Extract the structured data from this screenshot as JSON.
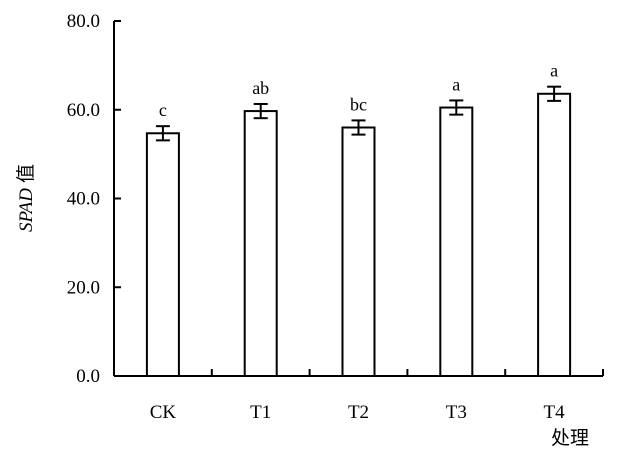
{
  "chart_data": {
    "type": "bar",
    "title": "",
    "xlabel": "处理",
    "ylabel_italic": "SPAD",
    "ylabel_rest": "值",
    "ylim": [
      0,
      80
    ],
    "yticks": [
      "0.0",
      "20.0",
      "40.0",
      "60.0",
      "80.0"
    ],
    "ytick_values": [
      0,
      20,
      40,
      60,
      80
    ],
    "categories": [
      "CK",
      "T1",
      "T2",
      "T3",
      "T4"
    ],
    "values": [
      54.7,
      59.7,
      56.0,
      60.5,
      63.6
    ],
    "errors": [
      1.6,
      1.6,
      1.6,
      1.6,
      1.6
    ],
    "significance": [
      "c",
      "ab",
      "bc",
      "a",
      "a"
    ],
    "grid": false,
    "bar_fill": "#ffffff",
    "bar_stroke": "#000000"
  }
}
